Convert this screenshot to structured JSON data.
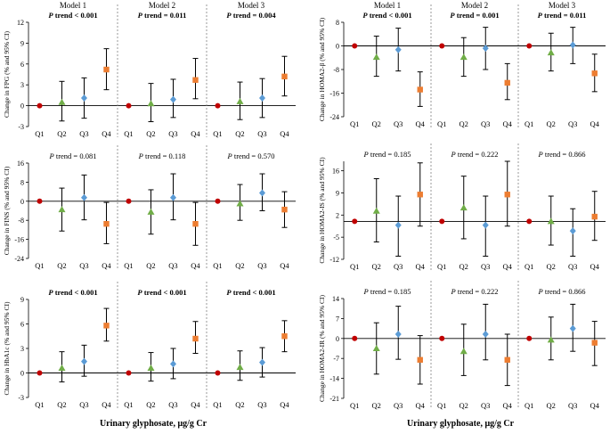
{
  "figure": {
    "xlabel": "Urinary glyphosate, μg/g Cr",
    "quartiles": [
      "Q1",
      "Q2",
      "Q3",
      "Q4"
    ],
    "models": [
      "Model 1",
      "Model 2",
      "Model 3"
    ],
    "ptrend_prefix": "P"
  },
  "colors": {
    "Q1": "#c00000",
    "Q2": "#70ad47",
    "Q3": "#5b9bd5",
    "Q4": "#ed7d31",
    "whisker": "#000000",
    "divider": "#808080"
  },
  "chart_data": [
    {
      "type": "scatter",
      "id": "fpg",
      "ylabel": "Change in FPG (% and 95% CI)",
      "ylim": [
        -3,
        12
      ],
      "yticks": [
        -3,
        0,
        3,
        6,
        9,
        12
      ],
      "trends": [
        " trend < 0.001",
        " trend = 0.011",
        " trend = 0.004"
      ],
      "trend_bold": true,
      "models": [
        {
          "points": [
            {
              "q": "Q1",
              "v": 0
            },
            {
              "q": "Q2",
              "v": 0.5,
              "lo": -2.2,
              "hi": 3.5
            },
            {
              "q": "Q3",
              "v": 1.1,
              "lo": -1.8,
              "hi": 4.0
            },
            {
              "q": "Q4",
              "v": 5.2,
              "lo": 2.3,
              "hi": 8.2
            }
          ]
        },
        {
          "points": [
            {
              "q": "Q1",
              "v": 0
            },
            {
              "q": "Q2",
              "v": 0.3,
              "lo": -2.3,
              "hi": 3.2
            },
            {
              "q": "Q3",
              "v": 0.9,
              "lo": -1.7,
              "hi": 3.8
            },
            {
              "q": "Q4",
              "v": 3.7,
              "lo": 1.0,
              "hi": 6.8
            }
          ]
        },
        {
          "points": [
            {
              "q": "Q1",
              "v": 0
            },
            {
              "q": "Q2",
              "v": 0.6,
              "lo": -2.0,
              "hi": 3.4
            },
            {
              "q": "Q3",
              "v": 1.1,
              "lo": -1.7,
              "hi": 3.9
            },
            {
              "q": "Q4",
              "v": 4.2,
              "lo": 1.4,
              "hi": 7.1
            }
          ]
        }
      ]
    },
    {
      "type": "scatter",
      "id": "homa-b",
      "ylabel": "Change in HOMA2-β (% and 95% CI)",
      "ylim": [
        -24,
        8
      ],
      "yticks": [
        -24,
        -16,
        -8,
        0,
        8
      ],
      "trends": [
        " trend < 0.001",
        " trend = 0.001",
        " trend = 0.011"
      ],
      "trend_bold": true,
      "models": [
        {
          "points": [
            {
              "q": "Q1",
              "v": 0
            },
            {
              "q": "Q2",
              "v": -3.8,
              "lo": -10.3,
              "hi": 3.3
            },
            {
              "q": "Q3",
              "v": -1.3,
              "lo": -8.5,
              "hi": 6.0
            },
            {
              "q": "Q4",
              "v": -14.8,
              "lo": -20.5,
              "hi": -8.8
            }
          ]
        },
        {
          "points": [
            {
              "q": "Q1",
              "v": 0
            },
            {
              "q": "Q2",
              "v": -3.8,
              "lo": -10.3,
              "hi": 2.8
            },
            {
              "q": "Q3",
              "v": -0.8,
              "lo": -8.0,
              "hi": 6.3
            },
            {
              "q": "Q4",
              "v": -12.5,
              "lo": -18.2,
              "hi": -6.0
            }
          ]
        },
        {
          "points": [
            {
              "q": "Q1",
              "v": 0
            },
            {
              "q": "Q2",
              "v": -2.3,
              "lo": -8.5,
              "hi": 4.3
            },
            {
              "q": "Q3",
              "v": 0.3,
              "lo": -6.0,
              "hi": 6.3
            },
            {
              "q": "Q4",
              "v": -9.3,
              "lo": -15.5,
              "hi": -2.8
            }
          ]
        }
      ]
    },
    {
      "type": "scatter",
      "id": "fins",
      "ylabel": "Change in FINS (% and 95% CI)",
      "ylim": [
        -24,
        16
      ],
      "yticks": [
        -24,
        -16,
        -8,
        0,
        8,
        16
      ],
      "trends": [
        " trend = 0.081",
        " trend = 0.118",
        " trend = 0.570"
      ],
      "trend_bold": false,
      "models": [
        {
          "points": [
            {
              "q": "Q1",
              "v": 0
            },
            {
              "q": "Q2",
              "v": -3.5,
              "lo": -12.5,
              "hi": 5.5
            },
            {
              "q": "Q3",
              "v": 1.5,
              "lo": -7.8,
              "hi": 11.0
            },
            {
              "q": "Q4",
              "v": -9.5,
              "lo": -17.8,
              "hi": -0.5
            }
          ]
        },
        {
          "points": [
            {
              "q": "Q1",
              "v": 0
            },
            {
              "q": "Q2",
              "v": -4.5,
              "lo": -13.8,
              "hi": 4.8
            },
            {
              "q": "Q3",
              "v": 1.5,
              "lo": -7.8,
              "hi": 11.5
            },
            {
              "q": "Q4",
              "v": -9.5,
              "lo": -18.5,
              "hi": -0.5
            }
          ]
        },
        {
          "points": [
            {
              "q": "Q1",
              "v": 0
            },
            {
              "q": "Q2",
              "v": -1.0,
              "lo": -8.0,
              "hi": 7.0
            },
            {
              "q": "Q3",
              "v": 3.5,
              "lo": -4.0,
              "hi": 11.5
            },
            {
              "q": "Q4",
              "v": -3.5,
              "lo": -11.0,
              "hi": 4.0
            }
          ]
        }
      ]
    },
    {
      "type": "scatter",
      "id": "homa-is",
      "ylabel": "Change in HOMA2-IS (% and 95% CI)",
      "ylim": [
        -12,
        19
      ],
      "yticks": [
        -12,
        -5,
        2,
        9,
        16
      ],
      "trends": [
        " trend = 0.185",
        " trend = 0.222",
        " trend = 0.866"
      ],
      "trend_bold": false,
      "models": [
        {
          "points": [
            {
              "q": "Q1",
              "v": 0
            },
            {
              "q": "Q2",
              "v": 3.3,
              "lo": -6.5,
              "hi": 13.5
            },
            {
              "q": "Q3",
              "v": -1.2,
              "lo": -11.0,
              "hi": 8.0
            },
            {
              "q": "Q4",
              "v": 8.5,
              "lo": -1.5,
              "hi": 18.5
            }
          ]
        },
        {
          "points": [
            {
              "q": "Q1",
              "v": 0
            },
            {
              "q": "Q2",
              "v": 4.3,
              "lo": -5.5,
              "hi": 14.3
            },
            {
              "q": "Q3",
              "v": -1.2,
              "lo": -11.0,
              "hi": 8.0
            },
            {
              "q": "Q4",
              "v": 8.5,
              "lo": -1.5,
              "hi": 19.0
            }
          ]
        },
        {
          "points": [
            {
              "q": "Q1",
              "v": 0
            },
            {
              "q": "Q2",
              "v": 0.0,
              "lo": -7.5,
              "hi": 8.0
            },
            {
              "q": "Q3",
              "v": -3.0,
              "lo": -11.0,
              "hi": 4.0
            },
            {
              "q": "Q4",
              "v": 1.5,
              "lo": -6.0,
              "hi": 9.5
            }
          ]
        }
      ]
    },
    {
      "type": "scatter",
      "id": "hba1c",
      "ylabel": "Change in HbA1c (% and 95% CI)",
      "ylim": [
        -3,
        9
      ],
      "yticks": [
        -3,
        0,
        3,
        6,
        9
      ],
      "trends": [
        " trend < 0.001",
        " trend < 0.001",
        " trend < 0.001"
      ],
      "trend_bold": true,
      "models": [
        {
          "points": [
            {
              "q": "Q1",
              "v": 0
            },
            {
              "q": "Q2",
              "v": 0.6,
              "lo": -1.1,
              "hi": 2.6
            },
            {
              "q": "Q3",
              "v": 1.4,
              "lo": -0.4,
              "hi": 3.4
            },
            {
              "q": "Q4",
              "v": 5.8,
              "lo": 3.9,
              "hi": 7.9
            }
          ]
        },
        {
          "points": [
            {
              "q": "Q1",
              "v": 0
            },
            {
              "q": "Q2",
              "v": 0.6,
              "lo": -1.0,
              "hi": 2.5
            },
            {
              "q": "Q3",
              "v": 1.1,
              "lo": -0.7,
              "hi": 3.0
            },
            {
              "q": "Q4",
              "v": 4.2,
              "lo": 2.4,
              "hi": 6.3
            }
          ]
        },
        {
          "points": [
            {
              "q": "Q1",
              "v": 0
            },
            {
              "q": "Q2",
              "v": 0.7,
              "lo": -0.9,
              "hi": 2.7
            },
            {
              "q": "Q3",
              "v": 1.3,
              "lo": -0.5,
              "hi": 3.1
            },
            {
              "q": "Q4",
              "v": 4.5,
              "lo": 2.6,
              "hi": 6.4
            }
          ]
        }
      ]
    },
    {
      "type": "scatter",
      "id": "homa-ir",
      "ylabel": "Change in HOMA2-IR (% and 95% CI)",
      "ylim": [
        -21,
        14
      ],
      "yticks": [
        -21,
        -14,
        -7,
        0,
        7,
        14
      ],
      "trends": [
        " trend = 0.185",
        " trend = 0.222",
        " trend = 0.866"
      ],
      "trend_bold": false,
      "models": [
        {
          "points": [
            {
              "q": "Q1",
              "v": 0
            },
            {
              "q": "Q2",
              "v": -3.5,
              "lo": -12.5,
              "hi": 5.5
            },
            {
              "q": "Q3",
              "v": 1.5,
              "lo": -7.3,
              "hi": 11.3
            },
            {
              "q": "Q4",
              "v": -7.5,
              "lo": -16.0,
              "hi": 1.0
            }
          ]
        },
        {
          "points": [
            {
              "q": "Q1",
              "v": 0
            },
            {
              "q": "Q2",
              "v": -4.5,
              "lo": -13.0,
              "hi": 5.0
            },
            {
              "q": "Q3",
              "v": 1.5,
              "lo": -7.5,
              "hi": 12.0
            },
            {
              "q": "Q4",
              "v": -7.5,
              "lo": -16.5,
              "hi": 1.5
            }
          ]
        },
        {
          "points": [
            {
              "q": "Q1",
              "v": 0
            },
            {
              "q": "Q2",
              "v": -0.5,
              "lo": -7.5,
              "hi": 7.5
            },
            {
              "q": "Q3",
              "v": 3.5,
              "lo": -4.5,
              "hi": 12.0
            },
            {
              "q": "Q4",
              "v": -1.5,
              "lo": -9.5,
              "hi": 6.0
            }
          ]
        }
      ]
    }
  ]
}
